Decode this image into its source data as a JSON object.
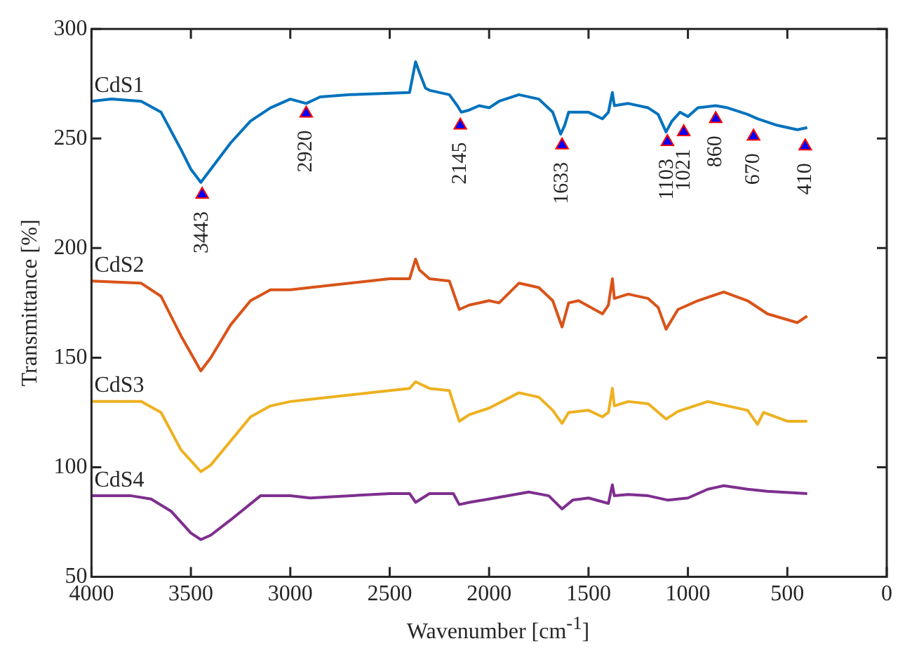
{
  "chart_data": {
    "type": "line",
    "xlabel": "Wavenumber [cm$^{-1}$]",
    "ylabel": "Transmittance [%]",
    "xlim": [
      4000,
      0
    ],
    "xticks": [
      4000,
      3500,
      3000,
      2500,
      2000,
      1500,
      1000,
      500,
      0
    ],
    "ylim": [
      50,
      300
    ],
    "yticks": [
      50,
      100,
      150,
      200,
      250,
      300
    ],
    "series": [
      {
        "name": "CdS1",
        "color": "#0072bd",
        "x": [
          4000,
          3900,
          3750,
          3650,
          3550,
          3500,
          3450,
          3400,
          3300,
          3200,
          3100,
          3000,
          2920,
          2850,
          2700,
          2400,
          2370,
          2350,
          2320,
          2300,
          2200,
          2160,
          2140,
          2100,
          2050,
          2000,
          1950,
          1850,
          1750,
          1680,
          1640,
          1620,
          1600,
          1500,
          1430,
          1400,
          1380,
          1370,
          1300,
          1200,
          1150,
          1110,
          1080,
          1040,
          1000,
          950,
          860,
          800,
          700,
          650,
          550,
          450,
          400
        ],
        "values": [
          267,
          268,
          267,
          262,
          245,
          236,
          230,
          236,
          248,
          258,
          264,
          268,
          266,
          269,
          270,
          271,
          285,
          280,
          273,
          272,
          270,
          265,
          262,
          263,
          265,
          264,
          267,
          270,
          268,
          262,
          252,
          256,
          262,
          262,
          259,
          262,
          271,
          265,
          266,
          264,
          261,
          253,
          258,
          262,
          260,
          264,
          265,
          264,
          261,
          259,
          256,
          254,
          255
        ]
      },
      {
        "name": "CdS2",
        "color": "#d95319",
        "x": [
          4000,
          3750,
          3650,
          3550,
          3450,
          3400,
          3300,
          3200,
          3100,
          3000,
          2900,
          2500,
          2400,
          2370,
          2350,
          2300,
          2200,
          2150,
          2100,
          2000,
          1950,
          1850,
          1750,
          1680,
          1633,
          1600,
          1550,
          1430,
          1400,
          1380,
          1370,
          1300,
          1200,
          1150,
          1110,
          1050,
          950,
          820,
          700,
          600,
          450,
          400
        ],
        "values": [
          185,
          184,
          178,
          160,
          144,
          150,
          165,
          176,
          181,
          181,
          182,
          186,
          186,
          195,
          190,
          186,
          185,
          172,
          174,
          176,
          175,
          184,
          182,
          176,
          164,
          175,
          176,
          170,
          174,
          186,
          177,
          179,
          177,
          173,
          163,
          172,
          176,
          180,
          176,
          170,
          166,
          169
        ]
      },
      {
        "name": "CdS3",
        "color": "#edb120",
        "x": [
          4000,
          3750,
          3650,
          3550,
          3450,
          3400,
          3300,
          3200,
          3100,
          3000,
          2900,
          2500,
          2400,
          2370,
          2300,
          2200,
          2150,
          2100,
          2000,
          1850,
          1750,
          1680,
          1633,
          1600,
          1500,
          1430,
          1400,
          1380,
          1370,
          1300,
          1200,
          1110,
          1050,
          900,
          700,
          650,
          620,
          500,
          400
        ],
        "values": [
          130,
          130,
          125,
          108,
          98,
          101,
          112,
          123,
          128,
          130,
          131,
          135,
          136,
          139,
          136,
          135,
          121,
          124,
          127,
          134,
          132,
          126,
          120,
          125,
          126,
          123,
          125,
          136,
          128,
          130,
          129,
          122,
          125.5,
          130,
          126,
          119.6,
          125,
          121,
          121
        ]
      },
      {
        "name": "CdS4",
        "color": "#7e2f8e",
        "x": [
          4000,
          3800,
          3700,
          3600,
          3500,
          3450,
          3400,
          3300,
          3150,
          3000,
          2900,
          2500,
          2400,
          2370,
          2300,
          2180,
          2150,
          2100,
          2000,
          1800,
          1700,
          1633,
          1580,
          1500,
          1400,
          1380,
          1370,
          1300,
          1200,
          1100,
          1000,
          900,
          820,
          700,
          600,
          400
        ],
        "values": [
          87,
          87,
          85.5,
          80,
          70,
          67,
          69,
          76,
          87,
          87,
          86,
          88,
          88,
          84,
          88,
          88,
          83,
          84,
          85.5,
          88.7,
          87,
          81,
          85,
          86,
          83.5,
          92,
          87,
          87.6,
          87,
          85,
          86,
          90,
          91.6,
          90,
          89,
          88
        ]
      },
      {
        "type": "scatter",
        "marker": "triangle",
        "color": "#0000ff",
        "x": [
          3443,
          2920,
          2145,
          1633,
          1103,
          1021,
          860,
          670,
          410
        ],
        "values": [
          224.5,
          261.5,
          256,
          247,
          248.5,
          253,
          259,
          251,
          246.5
        ]
      }
    ],
    "annotations": [
      {
        "text": "3443",
        "x": 3443,
        "y": 224.5
      },
      {
        "text": "2920",
        "x": 2920,
        "y": 261.5
      },
      {
        "text": "2145",
        "x": 2145,
        "y": 256
      },
      {
        "text": "1633",
        "x": 1633,
        "y": 247
      },
      {
        "text": "1103",
        "x": 1103,
        "y": 248.5
      },
      {
        "text": "1021",
        "x": 1021,
        "y": 253
      },
      {
        "text": "860",
        "x": 860,
        "y": 259
      },
      {
        "text": "670",
        "x": 670,
        "y": 251
      },
      {
        "text": "410",
        "x": 410,
        "y": 246.5
      }
    ]
  }
}
